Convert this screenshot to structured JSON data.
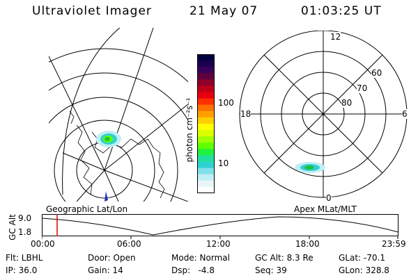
{
  "header": {
    "instrument": "Ultraviolet Imager",
    "date": "21 May 07",
    "time": "01:03:25 UT"
  },
  "colorbar": {
    "unit_label": "photon cm⁻²s⁻¹",
    "ticks": [
      "100",
      "10"
    ],
    "colors": [
      "#000040",
      "#1a0050",
      "#3a005a",
      "#600040",
      "#90002a",
      "#c00018",
      "#e80010",
      "#ff3000",
      "#ff7000",
      "#ffa000",
      "#ffd000",
      "#ffff00",
      "#d8ff00",
      "#a0ff00",
      "#60ff00",
      "#20f040",
      "#20e0a0",
      "#30d0d0",
      "#80e0e8",
      "#c0eef4",
      "#e8f6fa",
      "#ffffff"
    ]
  },
  "left_panel": {
    "caption": "Geographic Lat/Lon"
  },
  "right_panel": {
    "caption": "Apex MLat/MLT",
    "mlt_labels": {
      "top": "12",
      "left": "18",
      "right": "6",
      "bottom": "0"
    },
    "lat_labels": [
      "60",
      "70",
      "80"
    ]
  },
  "timeline": {
    "axis_label": "GC Alt",
    "y_ticks": [
      "9.0",
      "1.8"
    ],
    "x_ticks": [
      "00:00",
      "06:00",
      "12:00",
      "18:00",
      "23:59"
    ],
    "marker_color": "#e00000"
  },
  "footer": {
    "flt": "Flt: LBHL",
    "ip": "IP: 36.0",
    "door": "Door: Open",
    "gain": "Gain: 14",
    "mode": "Mode: Normal",
    "dsp": "Dsp:   -4.8",
    "gcalt": "GC Alt: 8.3 Re",
    "seq": "Seq: 39",
    "glat": "GLat: -70.1",
    "glon": "GLon: 328.8"
  }
}
